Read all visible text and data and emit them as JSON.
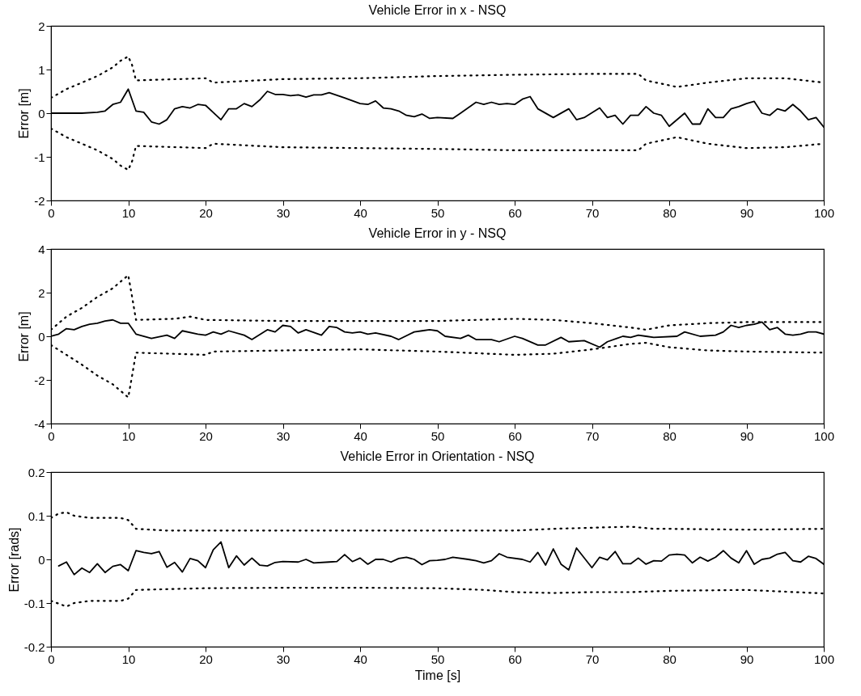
{
  "chart_data": [
    {
      "type": "line",
      "title": "Vehicle Error in x - NSQ",
      "ylabel": "Error [m]",
      "xlim": [
        0,
        100
      ],
      "xticks": [
        0,
        10,
        20,
        30,
        40,
        50,
        60,
        70,
        80,
        90,
        100
      ],
      "ylim": [
        -2,
        2
      ],
      "yticks": [
        -2,
        -1,
        0,
        1,
        2
      ],
      "series": [
        {
          "color": "#000000",
          "line_style": "solid",
          "x": [
            0,
            4,
            6,
            7,
            8,
            9,
            10,
            11,
            12,
            13,
            14,
            15,
            16,
            17,
            18,
            19,
            20,
            22,
            23,
            24,
            25,
            26,
            27,
            28,
            29,
            30,
            31,
            32,
            33,
            34,
            35,
            36,
            38,
            40,
            41,
            42,
            43,
            44,
            45,
            46,
            47,
            48,
            49,
            50,
            52,
            53,
            55,
            56,
            57,
            58,
            59,
            60,
            61,
            62,
            63,
            65,
            67,
            68,
            69,
            71,
            72,
            73,
            74,
            75,
            76,
            77,
            78,
            79,
            80,
            82,
            83,
            84,
            85,
            86,
            87,
            88,
            89,
            90,
            91,
            92,
            93,
            94,
            95,
            96,
            97,
            98,
            99,
            100
          ],
          "values": [
            0,
            0,
            0.02,
            0.05,
            0.2,
            0.25,
            0.55,
            0.05,
            0.02,
            -0.2,
            -0.25,
            -0.15,
            0.1,
            0.15,
            0.12,
            0.2,
            0.18,
            -0.15,
            0.1,
            0.1,
            0.22,
            0.15,
            0.3,
            0.5,
            0.43,
            0.43,
            0.4,
            0.42,
            0.37,
            0.42,
            0.42,
            0.47,
            0.35,
            0.22,
            0.2,
            0.28,
            0.12,
            0.1,
            0.05,
            -0.05,
            -0.08,
            -0.02,
            -0.12,
            -0.1,
            -0.12,
            0,
            0.25,
            0.2,
            0.25,
            0.2,
            0.22,
            0.2,
            0.32,
            0.38,
            0.1,
            -0.1,
            0.1,
            -0.15,
            -0.1,
            0.12,
            -0.1,
            -0.05,
            -0.25,
            -0.05,
            -0.05,
            0.15,
            0,
            -0.05,
            -0.3,
            0,
            -0.25,
            -0.25,
            0.1,
            -0.1,
            -0.1,
            0.1,
            0.15,
            0.22,
            0.27,
            0,
            -0.05,
            0.1,
            0.05,
            0.2,
            0.05,
            -0.15,
            -0.1,
            -0.32
          ]
        },
        {
          "color": "#000000",
          "line_style": "dotted",
          "x": [
            0,
            2,
            4,
            6,
            8,
            9,
            10,
            10.5,
            11,
            20,
            21,
            30,
            40,
            50,
            60,
            70,
            76,
            77,
            81,
            85,
            90,
            95,
            100
          ],
          "values": [
            0.35,
            0.55,
            0.7,
            0.85,
            1.05,
            1.2,
            1.3,
            1.1,
            0.75,
            0.8,
            0.7,
            0.78,
            0.8,
            0.85,
            0.88,
            0.9,
            0.9,
            0.75,
            0.6,
            0.7,
            0.8,
            0.8,
            0.7
          ]
        },
        {
          "color": "#000000",
          "line_style": "dotted",
          "x": [
            0,
            2,
            4,
            6,
            8,
            9,
            10,
            10.5,
            11,
            20,
            21,
            30,
            40,
            50,
            60,
            70,
            76,
            77,
            81,
            85,
            90,
            95,
            100
          ],
          "values": [
            -0.35,
            -0.55,
            -0.7,
            -0.85,
            -1.05,
            -1.2,
            -1.3,
            -1.1,
            -0.75,
            -0.8,
            -0.7,
            -0.78,
            -0.8,
            -0.82,
            -0.85,
            -0.85,
            -0.85,
            -0.7,
            -0.55,
            -0.7,
            -0.8,
            -0.78,
            -0.7
          ]
        }
      ]
    },
    {
      "type": "line",
      "title": "Vehicle Error in y - NSQ",
      "ylabel": "Error [m]",
      "xlim": [
        0,
        100
      ],
      "xticks": [
        0,
        10,
        20,
        30,
        40,
        50,
        60,
        70,
        80,
        90,
        100
      ],
      "ylim": [
        -4,
        4
      ],
      "yticks": [
        -4,
        -2,
        0,
        2,
        4
      ],
      "series": [
        {
          "color": "#000000",
          "line_style": "solid",
          "x": [
            0,
            1,
            2,
            3,
            4,
            5,
            6,
            7,
            8,
            9,
            10,
            11,
            13,
            15,
            16,
            17,
            19,
            20,
            21,
            22,
            23,
            25,
            26,
            28,
            29,
            30,
            31,
            32,
            33,
            35,
            36,
            37,
            38,
            39,
            40,
            41,
            42,
            44,
            45,
            47,
            48,
            49,
            50,
            51,
            53,
            54,
            55,
            57,
            58,
            60,
            61,
            63,
            64,
            66,
            67,
            69,
            71,
            72,
            74,
            75,
            76,
            77,
            78,
            81,
            82,
            84,
            86,
            87,
            88,
            89,
            90,
            91,
            92,
            93,
            94,
            95,
            96,
            97,
            98,
            99,
            100
          ],
          "values": [
            0,
            0.1,
            0.35,
            0.3,
            0.45,
            0.55,
            0.6,
            0.7,
            0.75,
            0.6,
            0.6,
            0.1,
            -0.1,
            0.05,
            -0.1,
            0.25,
            0.1,
            0.05,
            0.2,
            0.1,
            0.25,
            0.05,
            -0.15,
            0.3,
            0.2,
            0.5,
            0.45,
            0.15,
            0.3,
            0.05,
            0.45,
            0.4,
            0.2,
            0.15,
            0.2,
            0.1,
            0.15,
            0,
            -0.15,
            0.2,
            0.25,
            0.3,
            0.25,
            0,
            -0.1,
            0.05,
            -0.15,
            -0.15,
            -0.25,
            0,
            -0.1,
            -0.4,
            -0.4,
            -0.05,
            -0.25,
            -0.2,
            -0.5,
            -0.25,
            0,
            -0.05,
            0.05,
            0,
            -0.05,
            0,
            0.2,
            0,
            0.05,
            0.2,
            0.5,
            0.4,
            0.5,
            0.55,
            0.65,
            0.3,
            0.4,
            0.1,
            0.05,
            0.1,
            0.2,
            0.2,
            0.1
          ]
        },
        {
          "color": "#000000",
          "line_style": "dotted",
          "x": [
            0,
            2,
            4,
            6,
            8,
            9,
            10,
            10.5,
            11,
            16,
            18,
            20,
            30,
            40,
            50,
            60,
            65,
            70,
            75,
            77,
            80,
            85,
            90,
            100
          ],
          "values": [
            0.3,
            0.9,
            1.3,
            1.8,
            2.2,
            2.5,
            2.8,
            1.8,
            0.75,
            0.8,
            0.9,
            0.75,
            0.7,
            0.7,
            0.7,
            0.8,
            0.75,
            0.6,
            0.4,
            0.3,
            0.5,
            0.6,
            0.65,
            0.65
          ]
        },
        {
          "color": "#000000",
          "line_style": "dotted",
          "x": [
            0,
            2,
            4,
            6,
            8,
            9,
            10,
            10.5,
            11,
            20,
            21,
            30,
            40,
            50,
            60,
            65,
            70,
            75,
            77,
            80,
            85,
            90,
            100
          ],
          "values": [
            -0.4,
            -0.85,
            -1.3,
            -1.8,
            -2.2,
            -2.5,
            -2.8,
            -1.8,
            -0.75,
            -0.85,
            -0.7,
            -0.65,
            -0.6,
            -0.7,
            -0.85,
            -0.8,
            -0.6,
            -0.35,
            -0.3,
            -0.5,
            -0.65,
            -0.7,
            -0.75
          ]
        }
      ]
    },
    {
      "type": "line",
      "title": "Vehicle Error in Orientation - NSQ",
      "ylabel": "Error [rads]",
      "xlabel": "Time [s]",
      "xlim": [
        0,
        100
      ],
      "xticks": [
        0,
        10,
        20,
        30,
        40,
        50,
        60,
        70,
        80,
        90,
        100
      ],
      "ylim": [
        -0.2,
        0.2
      ],
      "yticks": [
        -0.2,
        -0.1,
        0,
        0.1,
        0.2
      ],
      "series": [
        {
          "color": "#000000",
          "line_style": "solid",
          "x": [
            1,
            2,
            3,
            4,
            5,
            6,
            7,
            8,
            9,
            10,
            11,
            12,
            13,
            14,
            15,
            16,
            17,
            18,
            19,
            20,
            21,
            22,
            23,
            24,
            25,
            26,
            27,
            28,
            29,
            30,
            32,
            33,
            34,
            36,
            37,
            38,
            39,
            40,
            41,
            42,
            43,
            44,
            45,
            46,
            47,
            48,
            49,
            50,
            51,
            52,
            54,
            55,
            56,
            57,
            58,
            59,
            61,
            62,
            63,
            64,
            65,
            66,
            67,
            68,
            70,
            71,
            72,
            73,
            74,
            75,
            76,
            77,
            78,
            79,
            80,
            81,
            82,
            83,
            84,
            85,
            86,
            87,
            88,
            89,
            90,
            91,
            92,
            93,
            94,
            95,
            96,
            97,
            98,
            99,
            100
          ],
          "values": [
            -0.015,
            -0.006,
            -0.035,
            -0.02,
            -0.03,
            -0.01,
            -0.03,
            -0.016,
            -0.012,
            -0.026,
            0.02,
            0.016,
            0.013,
            0.018,
            -0.018,
            -0.007,
            -0.029,
            0.002,
            -0.003,
            -0.019,
            0.022,
            0.04,
            -0.019,
            0.008,
            -0.013,
            0.003,
            -0.013,
            -0.015,
            -0.007,
            -0.005,
            -0.006,
            0,
            -0.008,
            -0.006,
            -0.005,
            0.011,
            -0.005,
            0.003,
            -0.011,
            0,
            0,
            -0.006,
            0.002,
            0.005,
            0,
            -0.012,
            -0.003,
            -0.002,
            0,
            0.005,
            0,
            -0.003,
            -0.008,
            -0.003,
            0.013,
            0.005,
            0,
            -0.006,
            0.016,
            -0.013,
            0.024,
            -0.011,
            -0.024,
            0.026,
            -0.019,
            0.005,
            -0.001,
            0.018,
            -0.01,
            -0.01,
            0.003,
            -0.011,
            -0.003,
            -0.004,
            0.01,
            0.012,
            0.01,
            -0.008,
            0.005,
            -0.004,
            0.005,
            0.02,
            0.003,
            -0.008,
            0.02,
            -0.011,
            0,
            0.003,
            0.012,
            0.016,
            -0.003,
            -0.006,
            0.007,
            0.002,
            -0.011
          ]
        },
        {
          "color": "#000000",
          "line_style": "dotted",
          "x": [
            0,
            1,
            2,
            3,
            5,
            9,
            10,
            11,
            15,
            20,
            30,
            40,
            50,
            60,
            65,
            75,
            78,
            80,
            90,
            100
          ],
          "values": [
            0.095,
            0.105,
            0.108,
            0.1,
            0.095,
            0.095,
            0.09,
            0.07,
            0.066,
            0.066,
            0.066,
            0.066,
            0.066,
            0.066,
            0.07,
            0.075,
            0.07,
            0.07,
            0.068,
            0.07
          ]
        },
        {
          "color": "#000000",
          "line_style": "dotted",
          "x": [
            0,
            2,
            3,
            5,
            9,
            10,
            11,
            20,
            30,
            40,
            50,
            56,
            60,
            65,
            70,
            75,
            80,
            90,
            100
          ],
          "values": [
            -0.095,
            -0.108,
            -0.1,
            -0.095,
            -0.095,
            -0.09,
            -0.07,
            -0.066,
            -0.065,
            -0.065,
            -0.066,
            -0.07,
            -0.075,
            -0.077,
            -0.075,
            -0.075,
            -0.072,
            -0.07,
            -0.078
          ]
        }
      ]
    }
  ]
}
